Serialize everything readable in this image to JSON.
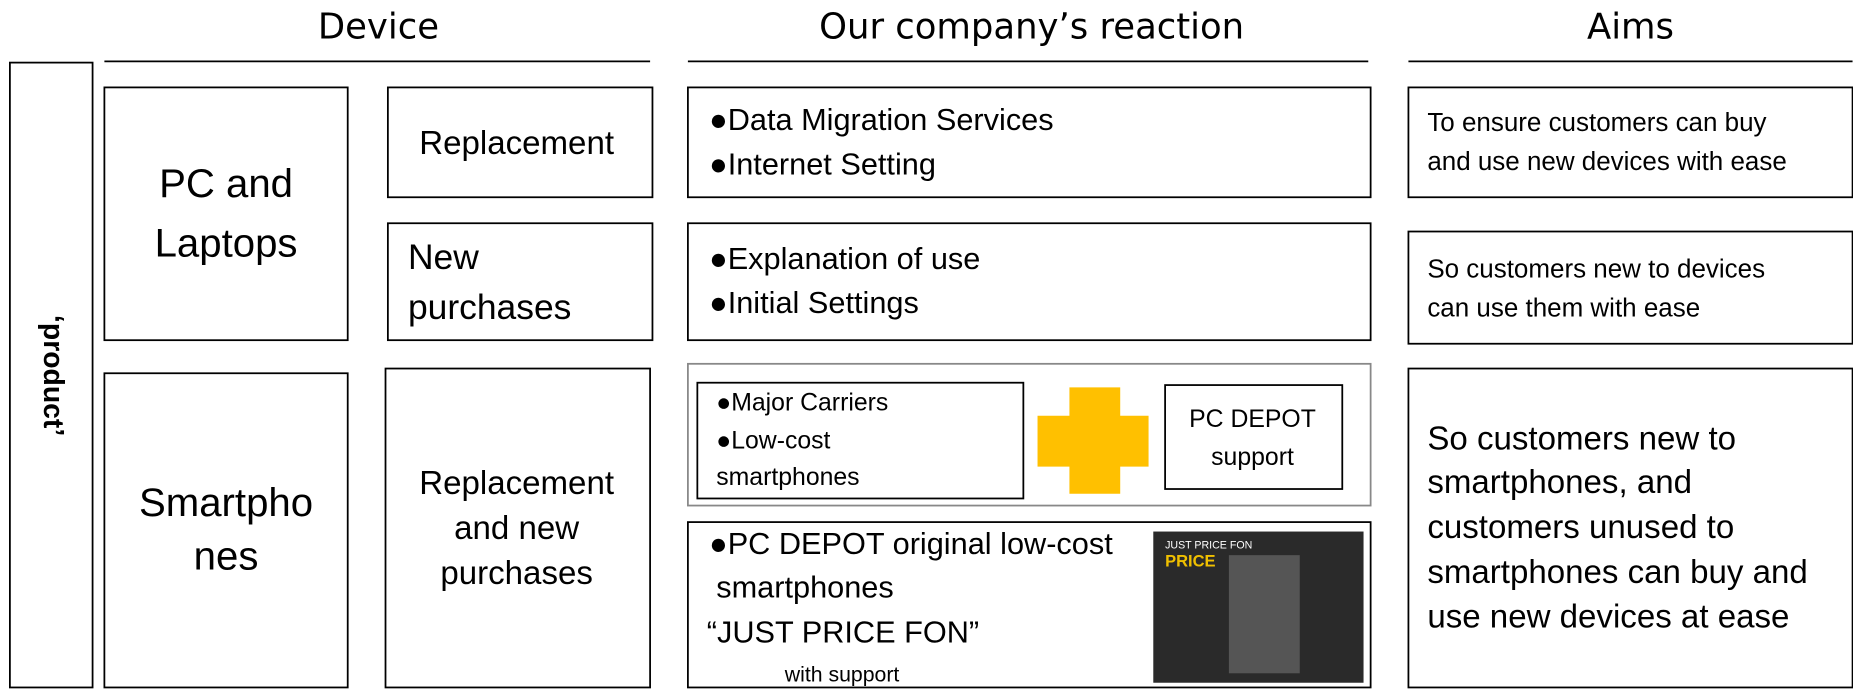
{
  "headers": [
    "Device",
    "Our company’s reaction",
    "Aims"
  ],
  "side_label": "‘product’",
  "devices": [
    {
      "name": [
        "PC and",
        "Laptops"
      ],
      "cases": [
        [
          "Replacement"
        ],
        [
          "New",
          "purchases"
        ]
      ]
    },
    {
      "name": [
        "Smartpho",
        "nes"
      ],
      "cases": [
        [
          "Replacement",
          "and new",
          "purchases"
        ]
      ]
    }
  ],
  "reactions": [
    {
      "lines": [
        "●Data Migration Services",
        "●Internet Setting"
      ]
    },
    {
      "lines": [
        "●Explanation of use",
        "●Initial Settings"
      ]
    },
    {
      "lines": [
        "●Major Carriers",
        "●Low-cost",
        "smartphones"
      ],
      "partner": [
        "PC DEPOT",
        "support"
      ]
    },
    {
      "lines": [
        "●PC DEPOT original low-cost",
        "smartphones",
        "“JUST PRICE FON”",
        "with support"
      ],
      "image_text": [
        "JUST PRICE FON",
        "PRICE"
      ]
    }
  ],
  "aims": [
    [
      "To ensure customers can buy",
      "and use new devices with ease"
    ],
    [
      "So customers new to devices",
      "can use them with ease"
    ],
    [
      "So customers new to",
      "smartphones, and",
      "customers unused to",
      "smartphones can buy and",
      "use new devices at ease"
    ]
  ]
}
